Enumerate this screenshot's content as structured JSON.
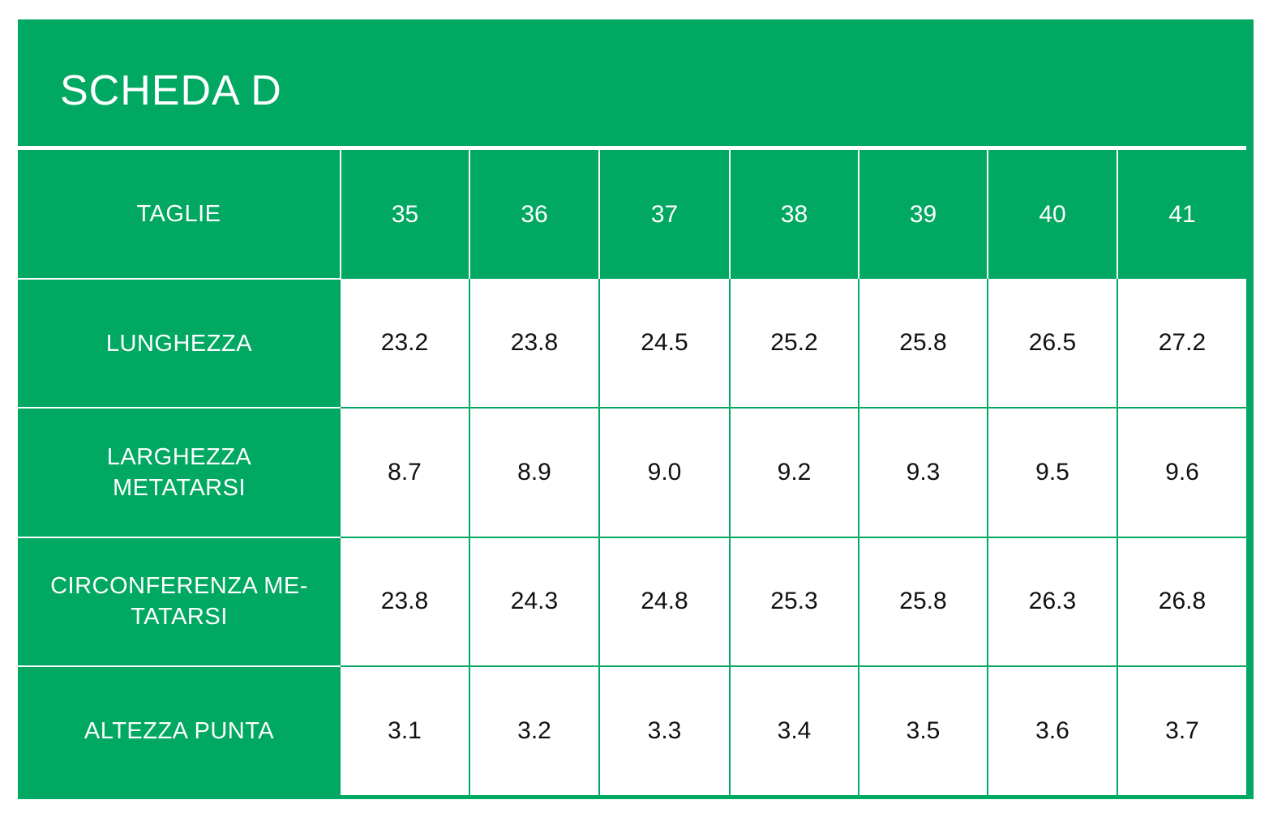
{
  "title": "SCHEDA D",
  "colors": {
    "brand_green": "#00a862",
    "cell_background": "#ffffff",
    "value_text": "#111111",
    "label_text": "#ffffff"
  },
  "table": {
    "header_label": "TAGLIE",
    "sizes": [
      "35",
      "36",
      "37",
      "38",
      "39",
      "40",
      "41"
    ],
    "rows": [
      {
        "label": "LUNGHEZZA",
        "values": [
          "23.2",
          "23.8",
          "24.5",
          "25.2",
          "25.8",
          "26.5",
          "27.2"
        ]
      },
      {
        "label": "LARGHEZZA METATARSI",
        "values": [
          "8.7",
          "8.9",
          "9.0",
          "9.2",
          "9.3",
          "9.5",
          "9.6"
        ]
      },
      {
        "label": "CIRCONFERENZA ME-TATARSI",
        "values": [
          "23.8",
          "24.3",
          "24.8",
          "25.3",
          "25.8",
          "26.3",
          "26.8"
        ]
      },
      {
        "label": "ALTEZZA PUNTA",
        "values": [
          "3.1",
          "3.2",
          "3.3",
          "3.4",
          "3.5",
          "3.6",
          "3.7"
        ]
      }
    ]
  },
  "chart_data": {
    "type": "table",
    "title": "SCHEDA D",
    "columns": [
      "TAGLIE",
      "35",
      "36",
      "37",
      "38",
      "39",
      "40",
      "41"
    ],
    "rows": [
      [
        "LUNGHEZZA",
        23.2,
        23.8,
        24.5,
        25.2,
        25.8,
        26.5,
        27.2
      ],
      [
        "LARGHEZZA METATARSI",
        8.7,
        8.9,
        9.0,
        9.2,
        9.3,
        9.5,
        9.6
      ],
      [
        "CIRCONFERENZA ME-TATARSI",
        23.8,
        24.3,
        24.8,
        25.3,
        25.8,
        26.3,
        26.8
      ],
      [
        "ALTEZZA PUNTA",
        3.1,
        3.2,
        3.3,
        3.4,
        3.5,
        3.6,
        3.7
      ]
    ]
  }
}
